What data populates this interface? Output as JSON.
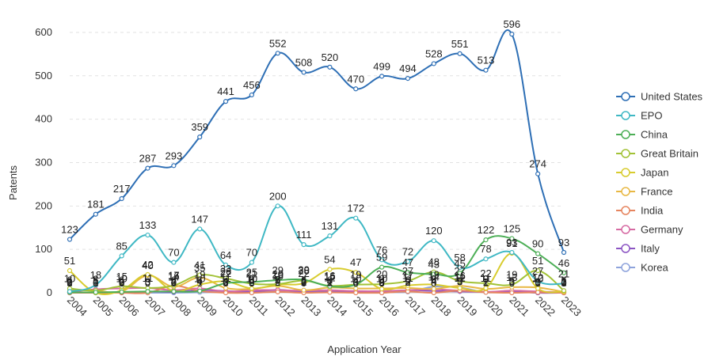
{
  "chart_data": {
    "type": "line",
    "title": "",
    "xlabel": "Application Year",
    "ylabel": "Patents",
    "ylim": [
      0,
      620
    ],
    "yticks": [
      "0",
      "100",
      "200",
      "300",
      "400",
      "500",
      "600"
    ],
    "grid": "horizontal dashed",
    "legend_position": "right",
    "categories": [
      "2004",
      "2005",
      "2006",
      "2007",
      "2008",
      "2009",
      "2010",
      "2011",
      "2012",
      "2013",
      "2014",
      "2015",
      "2016",
      "2017",
      "2018",
      "2019",
      "2020",
      "2021",
      "2022",
      "2023"
    ],
    "series": [
      {
        "name": "United States",
        "color": "#2e6fb5",
        "values": [
          123,
          181,
          217,
          287,
          293,
          359,
          441,
          456,
          552,
          508,
          520,
          470,
          499,
          494,
          528,
          551,
          513,
          596,
          274,
          93
        ]
      },
      {
        "name": "EPO",
        "color": "#3fb8c4",
        "values": [
          3,
          18,
          85,
          133,
          70,
          147,
          64,
          70,
          200,
          111,
          131,
          172,
          76,
          72,
          120,
          58,
          78,
          93,
          27,
          21
        ]
      },
      {
        "name": "China",
        "color": "#4daf57",
        "values": [
          1,
          1,
          2,
          3,
          3,
          4,
          22,
          25,
          29,
          30,
          15,
          19,
          59,
          47,
          43,
          45,
          122,
          125,
          90,
          46
        ]
      },
      {
        "name": "Great Britain",
        "color": "#a2c236",
        "values": [
          10,
          5,
          15,
          11,
          17,
          41,
          33,
          21,
          20,
          28,
          16,
          19,
          20,
          27,
          48,
          27,
          22,
          19,
          51,
          5
        ]
      },
      {
        "name": "Japan",
        "color": "#d8cc2e",
        "values": [
          51,
          0,
          6,
          42,
          4,
          19,
          26,
          10,
          19,
          22,
          54,
          47,
          9,
          17,
          19,
          11,
          11,
          91,
          10,
          3
        ]
      },
      {
        "name": "France",
        "color": "#e8b844",
        "values": [
          6,
          5,
          3,
          40,
          14,
          35,
          11,
          9,
          16,
          6,
          12,
          10,
          10,
          11,
          9,
          16,
          9,
          13,
          12,
          2
        ]
      },
      {
        "name": "India",
        "color": "#e6855f",
        "values": [
          0,
          0,
          0,
          0,
          16,
          4,
          0,
          0,
          2,
          0,
          1,
          0,
          0,
          3,
          0,
          5,
          1,
          0,
          1,
          0
        ]
      },
      {
        "name": "Germany",
        "color": "#d66aa3",
        "values": [
          2,
          8,
          10,
          11,
          6,
          10,
          3,
          6,
          6,
          5,
          6,
          4,
          4,
          6,
          8,
          5,
          2,
          5,
          3,
          1
        ]
      },
      {
        "name": "Italy",
        "color": "#8c55c3",
        "values": [
          0,
          1,
          0,
          3,
          2,
          6,
          4,
          2,
          7,
          2,
          2,
          3,
          0,
          6,
          4,
          3,
          2,
          3,
          0,
          0
        ]
      },
      {
        "name": "Korea",
        "color": "#8ea3dc",
        "values": [
          0,
          0,
          0,
          0,
          0,
          1,
          2,
          0,
          4,
          3,
          4,
          3,
          2,
          2,
          14,
          12,
          1,
          3,
          0,
          0
        ]
      }
    ]
  }
}
